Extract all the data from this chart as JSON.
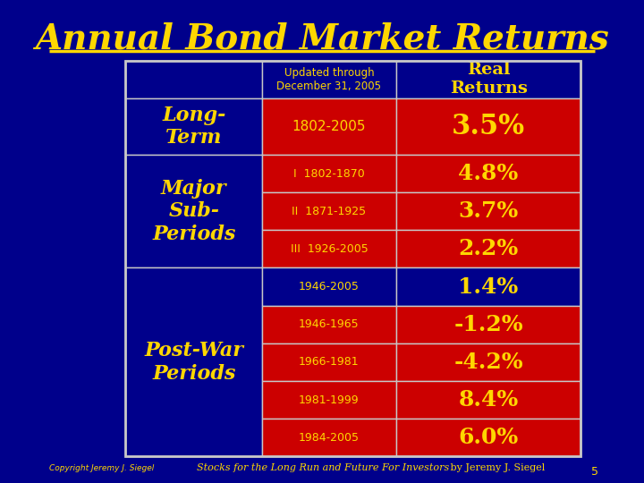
{
  "title": "Annual Bond Market Returns",
  "title_color": "#FFD700",
  "bg_color": "#00008B",
  "table_border_color": "#C8C8C8",
  "red_cell_color": "#CC0000",
  "blue_cell_color": "#00008B",
  "yellow_text": "#FFD700",
  "white_text": "#FFFFFF",
  "header_subtitle": "Updated through\nDecember 31, 2005",
  "header_col2": "Real\nReturns",
  "rows": [
    {
      "label": "Long-\nTerm",
      "period": "1802-2005",
      "value": "3.5%",
      "label_bg": "#00008B",
      "period_bg": "#CC0000",
      "value_bg": "#CC0000",
      "label_size": 18,
      "value_size": 24
    },
    {
      "label": "Major\nSub-\nPeriods",
      "subrows": [
        {
          "period": "I  1802-1870",
          "value": "4.8%"
        },
        {
          "period": "II  1871-1925",
          "value": "3.7%"
        },
        {
          "period": "III  1926-2005",
          "value": "2.2%"
        }
      ],
      "label_bg": "#00008B",
      "period_bg": "#CC0000",
      "value_bg": "#CC0000",
      "label_size": 18,
      "value_size": 22
    },
    {
      "label": "Post-War\nPeriods",
      "subrows": [
        {
          "period": "1946-2005",
          "value": "1.4%",
          "period_bg": "#00008B",
          "value_bg": "#00008B"
        },
        {
          "period": "1946-1965",
          "value": "-1.2%",
          "period_bg": "#CC0000",
          "value_bg": "#CC0000"
        },
        {
          "period": "1966-1981",
          "value": "-4.2%",
          "period_bg": "#CC0000",
          "value_bg": "#CC0000"
        },
        {
          "period": "1981-1999",
          "value": "8.4%",
          "period_bg": "#CC0000",
          "value_bg": "#CC0000"
        },
        {
          "period": "1984-2005",
          "value": "6.0%",
          "period_bg": "#CC0000",
          "value_bg": "#CC0000"
        }
      ],
      "label_bg": "#00008B",
      "label_size": 18,
      "value_size": 22
    }
  ],
  "footer_left": "Copyright Jeremy J. Siegel",
  "footer_italic": "Stocks for the Long Run and Future For Investors",
  "footer_right": " by Jeremy J. Siegel",
  "page_num": "5",
  "separator_color": "#FFD700",
  "line_color": "#C8C8C8"
}
